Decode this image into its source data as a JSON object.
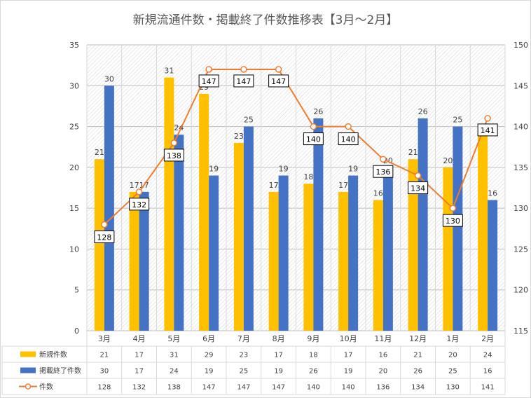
{
  "chart_data": {
    "type": "bar",
    "title": "新規流通件数・掲載終了件数推移表【3月～2月】",
    "categories": [
      "3月",
      "4月",
      "5月",
      "6月",
      "7月",
      "8月",
      "9月",
      "10月",
      "11月",
      "12月",
      "1月",
      "2月"
    ],
    "series": [
      {
        "name": "新規件数",
        "type": "bar",
        "axis": "left",
        "color": "#FFC000",
        "values": [
          21,
          17,
          31,
          29,
          23,
          17,
          18,
          17,
          16,
          21,
          20,
          24
        ]
      },
      {
        "name": "掲載終了件数",
        "type": "bar",
        "axis": "left",
        "color": "#4472C4",
        "values": [
          30,
          17,
          24,
          19,
          25,
          19,
          26,
          19,
          20,
          26,
          25,
          16
        ]
      },
      {
        "name": "件数",
        "type": "line",
        "axis": "right",
        "color": "#ED7D31",
        "values": [
          128,
          132,
          138,
          147,
          147,
          147,
          140,
          140,
          136,
          134,
          130,
          141
        ]
      }
    ],
    "y_left": {
      "min": 0,
      "max": 35,
      "ticks": [
        0,
        5,
        10,
        15,
        20,
        25,
        30,
        35
      ]
    },
    "y_right": {
      "min": 115,
      "max": 150,
      "ticks": [
        115,
        120,
        125,
        130,
        135,
        140,
        145,
        150
      ]
    },
    "grid": true,
    "data_table": true
  }
}
